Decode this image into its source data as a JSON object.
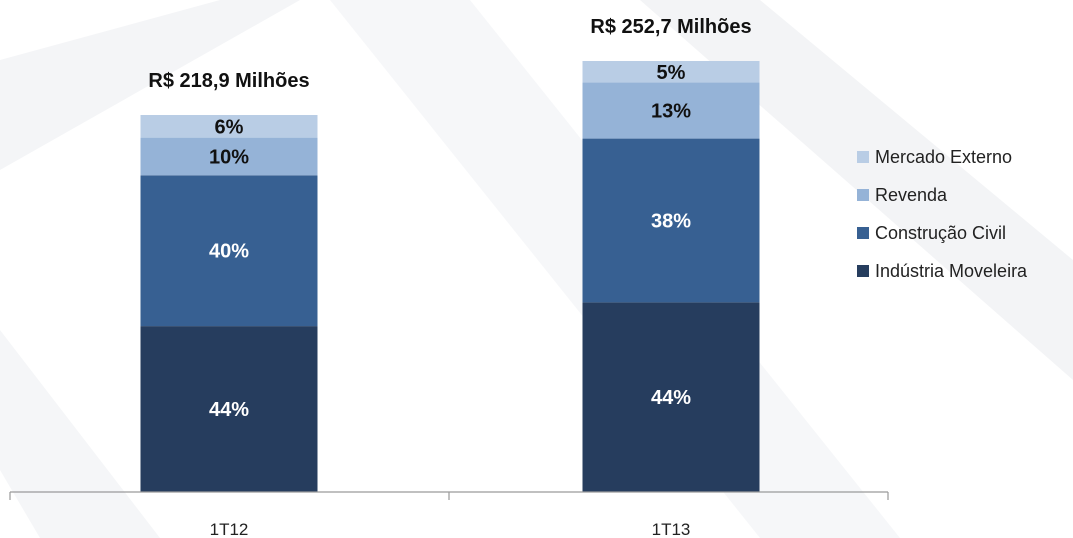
{
  "chart_data": {
    "type": "bar",
    "stacked": true,
    "unit": "%",
    "categories": [
      "1T12",
      "1T13"
    ],
    "totals": [
      "R$ 218,9 Milhões",
      "R$ 252,7 Milhões"
    ],
    "series": [
      {
        "name": "Indústria Moveleira",
        "values": [
          44,
          44
        ],
        "color": "#263D5E"
      },
      {
        "name": "Construção Civil",
        "values": [
          40,
          38
        ],
        "color": "#376092"
      },
      {
        "name": "Revenda",
        "values": [
          10,
          13
        ],
        "color": "#95B3D7"
      },
      {
        "name": "Mercado Externo",
        "values": [
          6,
          5
        ],
        "color": "#B9CDE5"
      }
    ],
    "legend_order": [
      "Mercado Externo",
      "Revenda",
      "Construção Civil",
      "Indústria Moveleira"
    ],
    "legend_position": "right",
    "grid": false,
    "ylim": [
      0,
      100
    ]
  }
}
